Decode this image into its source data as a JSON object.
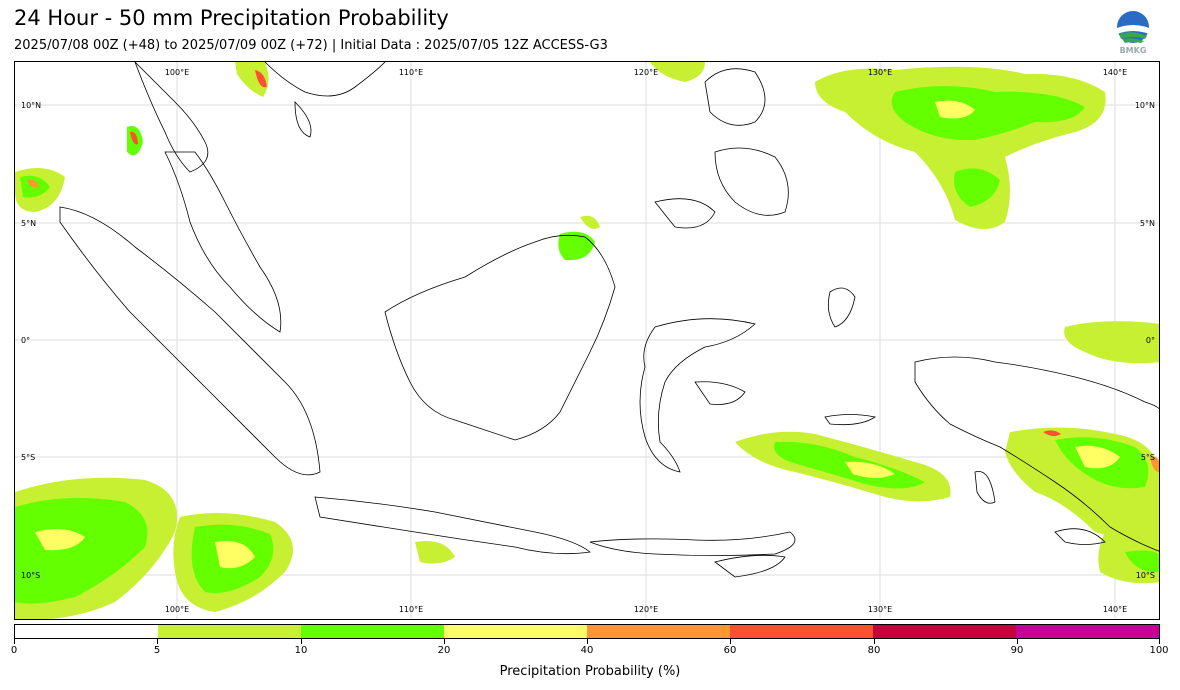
{
  "header": {
    "title": "24 Hour - 50 mm Precipitation Probability",
    "subtitle": "2025/07/08 00Z (+48) to 2025/07/09 00Z (+72) | Initial Data : 2025/07/05 12Z ACCESS-G3",
    "logo_text": "BMKG"
  },
  "map": {
    "lon_labels": [
      "100°E",
      "110°E",
      "120°E",
      "130°E",
      "140°E"
    ],
    "lat_labels": [
      "10°N",
      "5°N",
      "0°",
      "5°S",
      "10°S"
    ],
    "grid_color": "#dddddd"
  },
  "colorbar": {
    "label": "Precipitation Probability (%)",
    "ticks": [
      "0",
      "5",
      "10",
      "20",
      "40",
      "60",
      "80",
      "90",
      "100"
    ],
    "colors": [
      "#ffffff",
      "#c8f032",
      "#64ff00",
      "#ffff64",
      "#ff9632",
      "#ff5032",
      "#c8003c",
      "#c80096"
    ]
  },
  "legend_colors": {
    "light_green": "#c8f032",
    "green": "#64ff00",
    "yellow": "#ffff64",
    "orange": "#ff9632",
    "red": "#ff5032"
  }
}
